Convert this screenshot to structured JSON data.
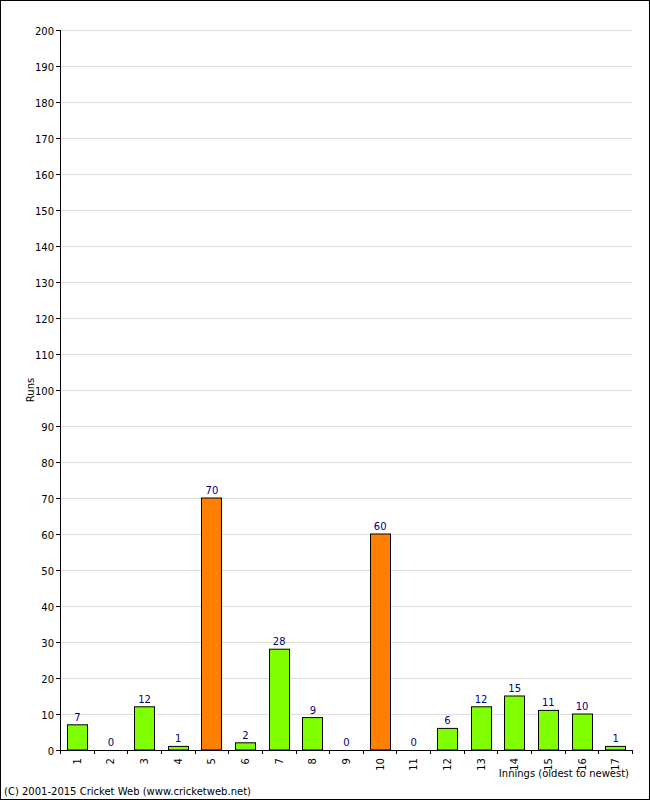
{
  "chart_data": {
    "type": "bar",
    "y_label": "Runs",
    "x_label": "Innings (oldest to newest)",
    "annotations": [
      "(C) 2001-2015 Cricket Web (www.cricketweb.net)"
    ],
    "categories": [
      "1",
      "2",
      "3",
      "4",
      "5",
      "6",
      "7",
      "8",
      "9",
      "10",
      "11",
      "12",
      "13",
      "14",
      "15",
      "16",
      "17"
    ],
    "values": [
      7,
      0,
      12,
      1,
      70,
      2,
      28,
      9,
      0,
      60,
      0,
      6,
      12,
      15,
      11,
      10,
      1
    ],
    "colors": [
      "#80ff00",
      "#80ff00",
      "#80ff00",
      "#80ff00",
      "#ff8000",
      "#80ff00",
      "#80ff00",
      "#80ff00",
      "#80ff00",
      "#ff8000",
      "#80ff00",
      "#80ff00",
      "#80ff00",
      "#80ff00",
      "#80ff00",
      "#80ff00",
      "#80ff00"
    ],
    "ylim": [
      0,
      200
    ],
    "yticks": [
      0,
      10,
      20,
      30,
      40,
      50,
      60,
      70,
      80,
      90,
      100,
      110,
      120,
      130,
      140,
      150,
      160,
      170,
      180,
      190,
      200
    ],
    "grid": true,
    "data_labels": true
  }
}
